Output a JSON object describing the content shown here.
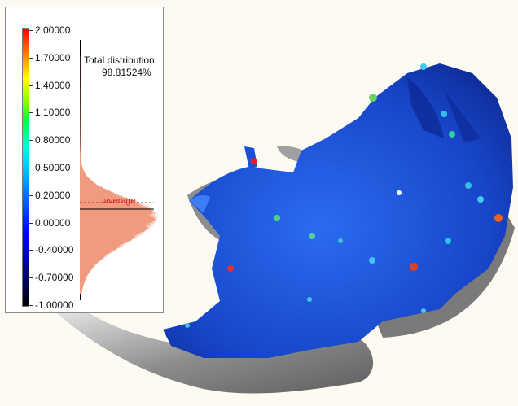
{
  "legend": {
    "ticks": [
      {
        "label": "2.00000",
        "value": 2.0
      },
      {
        "label": "1.70000",
        "value": 1.7
      },
      {
        "label": "1.40000",
        "value": 1.4
      },
      {
        "label": "1.10000",
        "value": 1.1
      },
      {
        "label": "0.80000",
        "value": 0.8
      },
      {
        "label": "0.50000",
        "value": 0.5
      },
      {
        "label": "0.20000",
        "value": 0.2
      },
      {
        "label": "0.00000",
        "value": 0.0
      },
      {
        "label": "-0.40000",
        "value": -0.4
      },
      {
        "label": "-0.70000",
        "value": -0.7
      },
      {
        "label": "-1.00000",
        "value": -1.0
      }
    ],
    "total_label": "Total distribution:",
    "total_value": "98.81524%",
    "average_label": "average",
    "colors": {
      "histogram": "#f09a80",
      "average_line": "#d02020",
      "model_surface": "#1a4fd8",
      "bone": "#9a9a9a"
    }
  }
}
